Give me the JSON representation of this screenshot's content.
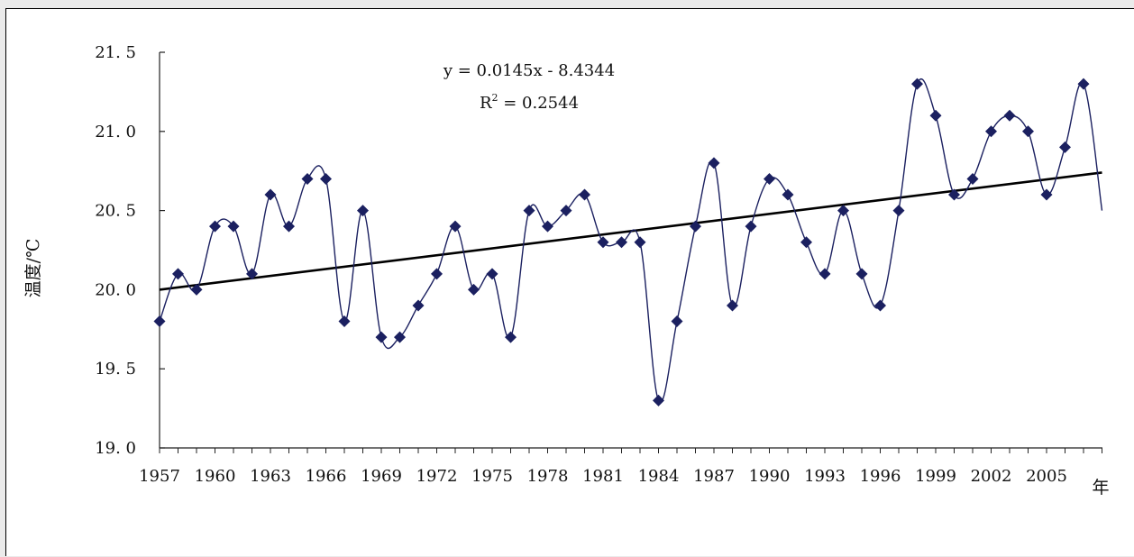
{
  "chart_data": {
    "type": "line",
    "title": "",
    "xlabel": "年",
    "ylabel": "温度/℃",
    "ylim": [
      19.0,
      21.5
    ],
    "xlim": [
      1957,
      2008
    ],
    "y_ticks": [
      "19. 0",
      "19. 5",
      "20. 0",
      "20. 5",
      "21. 0",
      "21. 5"
    ],
    "y_tick_values": [
      19.0,
      19.5,
      20.0,
      20.5,
      21.0,
      21.5
    ],
    "x_ticks": [
      "1957",
      "1960",
      "1963",
      "1966",
      "1969",
      "1972",
      "1975",
      "1978",
      "1981",
      "1984",
      "1987",
      "1990",
      "1993",
      "1996",
      "1999",
      "2002",
      "2005"
    ],
    "x_tick_values": [
      1957,
      1960,
      1963,
      1966,
      1969,
      1972,
      1975,
      1978,
      1981,
      1984,
      1987,
      1990,
      1993,
      1996,
      1999,
      2002,
      2005
    ],
    "grid": false,
    "legend": "none",
    "series": [
      {
        "x": [
          1957,
          1958,
          1959,
          1960,
          1961,
          1962,
          1963,
          1964,
          1965,
          1966,
          1967,
          1968,
          1969,
          1970,
          1971,
          1972,
          1973,
          1974,
          1975,
          1976,
          1977,
          1978,
          1979,
          1980,
          1981,
          1982,
          1983,
          1984,
          1985,
          1986,
          1987,
          1988,
          1989,
          1990,
          1991,
          1992,
          1993,
          1994,
          1995,
          1996,
          1997,
          1998,
          1999,
          2000,
          2001,
          2002,
          2003,
          2004,
          2005,
          2006,
          2007,
          2008
        ],
        "values": [
          19.8,
          20.1,
          20.0,
          20.4,
          20.4,
          20.1,
          20.6,
          20.4,
          20.7,
          20.7,
          19.8,
          20.5,
          19.7,
          19.7,
          19.9,
          20.1,
          20.4,
          20.0,
          20.1,
          19.7,
          20.5,
          20.4,
          20.5,
          20.6,
          20.3,
          20.3,
          20.3,
          19.3,
          19.8,
          20.4,
          20.8,
          19.9,
          20.4,
          20.7,
          20.6,
          20.3,
          20.1,
          20.5,
          20.1,
          19.9,
          20.5,
          21.3,
          21.1,
          20.6,
          20.7,
          21.0,
          21.1,
          21.0,
          20.6,
          20.9,
          21.3,
          20.5
        ],
        "color": "#1b2060",
        "marker": "diamond",
        "smooth": true,
        "last_point_marker": false
      }
    ],
    "trendline": {
      "type": "linear",
      "from": [
        1957,
        20.0
      ],
      "to": [
        2008,
        20.74
      ],
      "color": "#000000",
      "equation_text": "y = 0.0145x - 8.4344",
      "r2_label": "R",
      "r2_sup": "2",
      "r2_text": " = 0.2544"
    }
  }
}
